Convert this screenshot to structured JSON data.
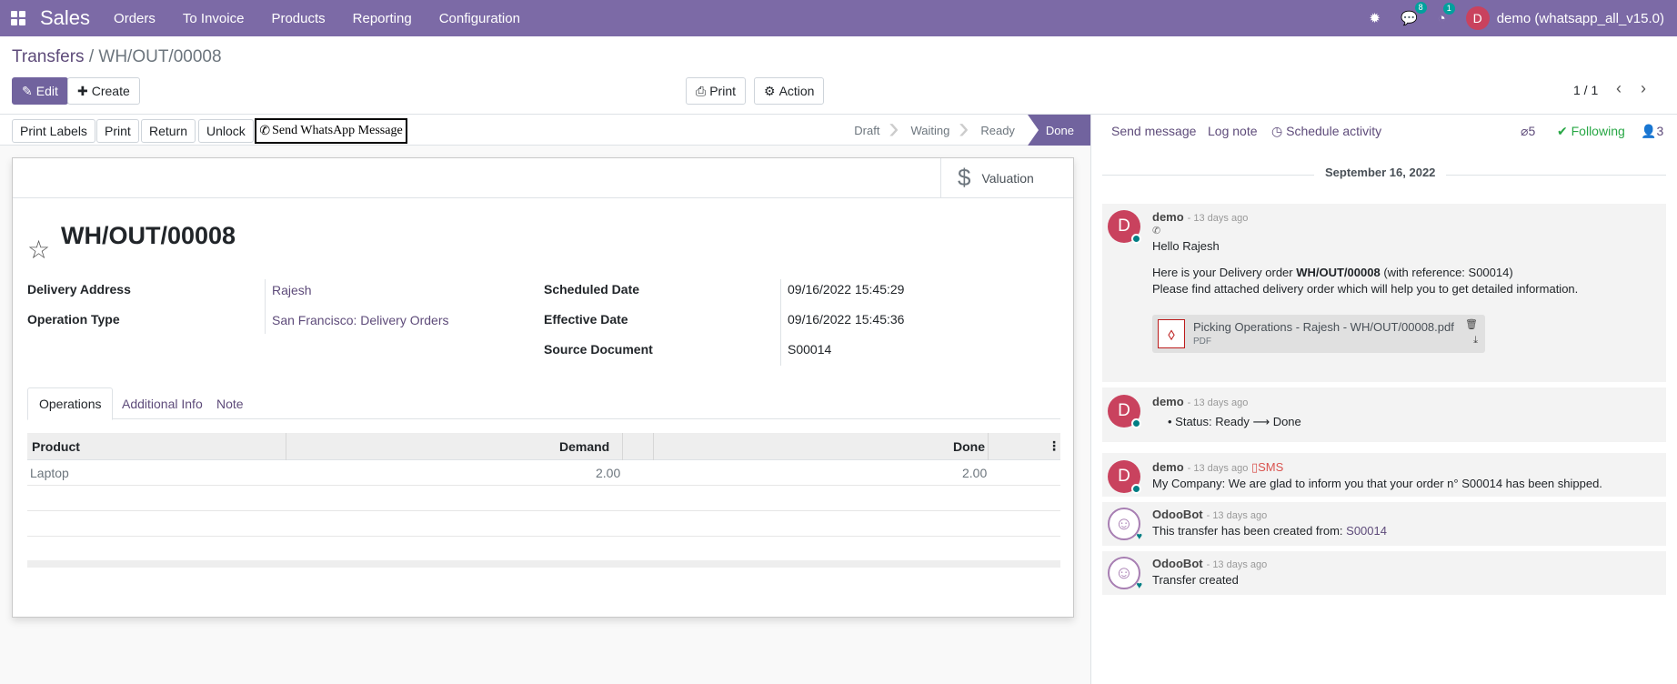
{
  "navbar": {
    "app_name": "Sales",
    "menu": [
      "Orders",
      "To Invoice",
      "Products",
      "Reporting",
      "Configuration"
    ],
    "messages_count": "8",
    "activities_count": "1",
    "user_initial": "D",
    "user_name": "demo (whatsapp_all_v15.0)"
  },
  "breadcrumb": {
    "parent": "Transfers",
    "separator": "/",
    "current": "WH/OUT/00008"
  },
  "controls": {
    "edit": "Edit",
    "create": "Create",
    "print": "Print",
    "action": "Action",
    "pager": "1 / 1"
  },
  "statusbar": {
    "buttons": [
      "Print Labels",
      "Print",
      "Return",
      "Unlock"
    ],
    "whatsapp": "Send WhatsApp Message",
    "stages": [
      "Draft",
      "Waiting",
      "Ready",
      "Done"
    ],
    "current_stage": "Done"
  },
  "form": {
    "valuation": "Valuation",
    "title": "WH/OUT/00008",
    "fields": {
      "delivery_address_label": "Delivery Address",
      "delivery_address": "Rajesh",
      "operation_type_label": "Operation Type",
      "operation_type": "San Francisco: Delivery Orders",
      "scheduled_date_label": "Scheduled Date",
      "scheduled_date": "09/16/2022 15:45:29",
      "effective_date_label": "Effective Date",
      "effective_date": "09/16/2022 15:45:36",
      "source_document_label": "Source Document",
      "source_document": "S00014"
    },
    "tabs": [
      "Operations",
      "Additional Info",
      "Note"
    ],
    "table": {
      "headers": [
        "Product",
        "Demand",
        "Done"
      ],
      "rows": [
        {
          "product": "Laptop",
          "demand": "2.00",
          "done": "2.00"
        }
      ]
    }
  },
  "chatter": {
    "send_message": "Send message",
    "log_note": "Log note",
    "schedule_activity": "Schedule activity",
    "attachments_count": "5",
    "following": "Following",
    "followers_count": "3",
    "date": "September 16, 2022",
    "messages": [
      {
        "author": "demo",
        "ago": "- 13 days ago",
        "line1": "Hello Rajesh",
        "line2_pre": "Here is your Delivery order ",
        "line2_bold": "WH/OUT/00008",
        "line2_post": " (with reference: S00014)",
        "line3": "Please find attached delivery order which will help you to get detailed information.",
        "attachment_name": "Picking Operations - Rajesh - WH/OUT/00008.pdf",
        "attachment_type": "PDF"
      },
      {
        "author": "demo",
        "ago": "- 13 days ago",
        "text": "Status: Ready ⟶ Done"
      },
      {
        "author": "demo",
        "ago": "- 13 days ago",
        "tag": "SMS",
        "text": "My Company: We are glad to inform you that your order n° S00014 has been shipped."
      },
      {
        "author": "OdooBot",
        "ago": "- 13 days ago",
        "text": "This transfer has been created from: ",
        "link": "S00014"
      },
      {
        "author": "OdooBot",
        "ago": "- 13 days ago",
        "text": "Transfer created"
      }
    ]
  }
}
